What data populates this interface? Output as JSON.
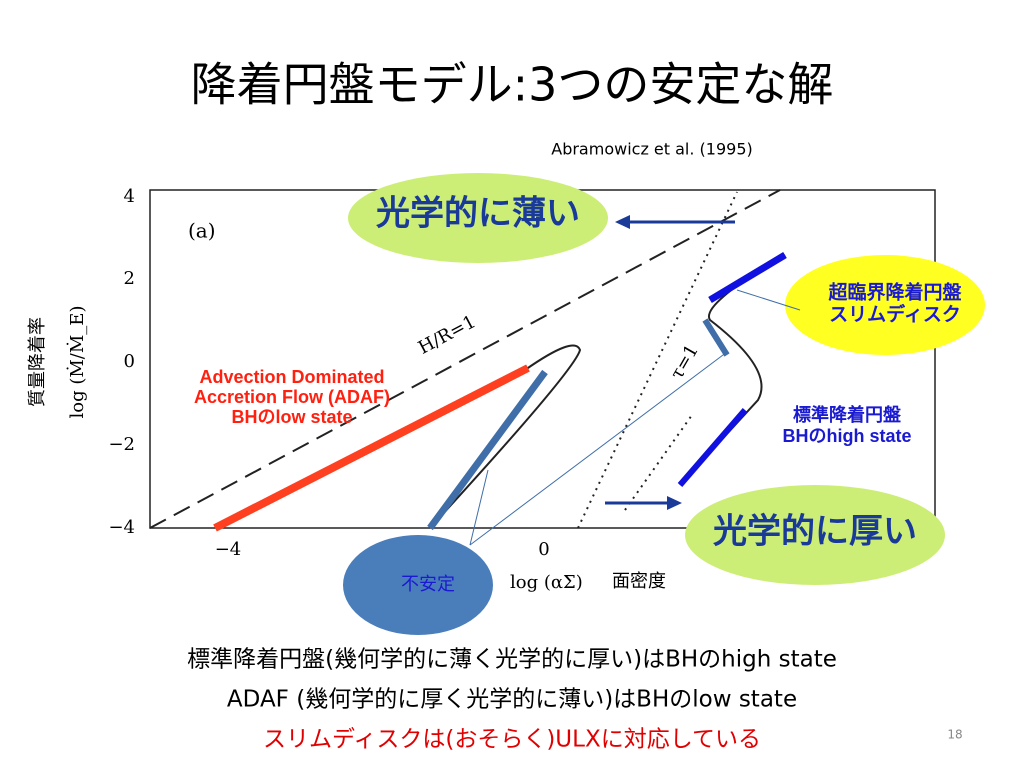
{
  "slide": {
    "title": "降着円盤モデル:3つの安定な解",
    "citation": "Abramowicz et al. (1995)",
    "page_number": "18"
  },
  "plot": {
    "panel": "(a)",
    "y_axis_label": "log (Ṁ/Ṁ_E)",
    "y_axis_label_ja": "質量降着率",
    "x_axis_label": "log (αΣ)",
    "x_axis_label_ja": "面密度",
    "yticks": [
      "4",
      "2",
      "0",
      "−2",
      "−4"
    ],
    "xticks": [
      "−4",
      "0"
    ],
    "line_labels": [
      "H/R=1",
      "τ=1"
    ]
  },
  "callouts": {
    "thin": "光学的に薄い",
    "thick": "光学的に厚い",
    "slim": [
      "超臨界降着円盤",
      "スリムディスク"
    ],
    "adaf": [
      "Advection Dominated",
      "Accretion Flow (ADAF)",
      "BHのlow state"
    ],
    "standard": [
      "標準降着円盤",
      "BHのhigh state"
    ],
    "unstable": "不安定"
  },
  "notes": [
    "標準降着円盤(幾何学的に薄く光学的に厚い)はBHのhigh state",
    "ADAF (幾何学的に厚く光学的に薄い)はBHのlow state",
    "スリムディスクは(おそらく)ULXに対応している"
  ]
}
